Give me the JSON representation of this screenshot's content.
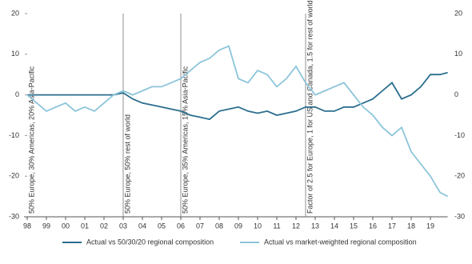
{
  "chart_data": {
    "type": "line",
    "x": [
      1998,
      1998.5,
      1999,
      1999.5,
      2000,
      2000.5,
      2001,
      2001.5,
      2002,
      2002.5,
      2003,
      2003.5,
      2004,
      2004.5,
      2005,
      2005.5,
      2006,
      2006.5,
      2007,
      2007.5,
      2008,
      2008.5,
      2009,
      2009.5,
      2010,
      2010.5,
      2011,
      2011.5,
      2012,
      2012.5,
      2013,
      2013.5,
      2014,
      2014.5,
      2015,
      2015.5,
      2016,
      2016.5,
      2017,
      2017.5,
      2018,
      2018.5,
      2019,
      2019.5,
      2019.9
    ],
    "series": [
      {
        "name": "Actual vs 50/30/20 regional composition",
        "color": "#2b6e8e",
        "values": [
          0,
          0,
          0,
          0,
          0,
          0,
          0,
          0,
          0,
          0,
          0.5,
          -1,
          -2,
          -2.5,
          -3,
          -3.5,
          -4,
          -5,
          -5.5,
          -6,
          -4,
          -3.5,
          -3,
          -4,
          -4.5,
          -4,
          -5,
          -4.5,
          -4,
          -3,
          -3,
          -4,
          -4,
          -3,
          -3,
          -2,
          -1,
          1,
          3,
          -1,
          0,
          2,
          5,
          5,
          5.5
        ]
      },
      {
        "name": "Actual vs market-weighted regional composition",
        "color": "#8cc5da",
        "values": [
          0,
          -2,
          -4,
          -3,
          -2,
          -4,
          -3,
          -4,
          -2,
          0,
          1,
          0,
          1,
          2,
          2,
          3,
          4,
          6,
          8,
          9,
          11,
          12,
          4,
          3,
          6,
          5,
          2,
          4,
          7,
          3,
          0,
          1,
          2,
          3,
          0,
          -3,
          -5,
          -8,
          -10,
          -8,
          -14,
          -17,
          -20,
          -24,
          -25
        ]
      }
    ],
    "xlim": [
      1998,
      2019.9
    ],
    "xticks": [
      {
        "value": 1998,
        "label": "98"
      },
      {
        "value": 1999,
        "label": "99"
      },
      {
        "value": 2000,
        "label": "00"
      },
      {
        "value": 2001,
        "label": "01"
      },
      {
        "value": 2002,
        "label": "02"
      },
      {
        "value": 2003,
        "label": "03"
      },
      {
        "value": 2004,
        "label": "04"
      },
      {
        "value": 2005,
        "label": "05"
      },
      {
        "value": 2006,
        "label": "06"
      },
      {
        "value": 2007,
        "label": "07"
      },
      {
        "value": 2008,
        "label": "08"
      },
      {
        "value": 2009,
        "label": "09"
      },
      {
        "value": 2010,
        "label": "10"
      },
      {
        "value": 2011,
        "label": "11"
      },
      {
        "value": 2012,
        "label": "12"
      },
      {
        "value": 2013,
        "label": "13"
      },
      {
        "value": 2014,
        "label": "14"
      },
      {
        "value": 2015,
        "label": "15"
      },
      {
        "value": 2016,
        "label": "16"
      },
      {
        "value": 2017,
        "label": "17"
      },
      {
        "value": 2018,
        "label": "18"
      },
      {
        "value": 2019,
        "label": "19"
      }
    ],
    "ylim": [
      -30,
      20
    ],
    "yticks": [
      -30,
      -20,
      -10,
      0,
      10,
      20
    ],
    "annotations": [
      {
        "text": "50% Europe, 30% Americas, 20% Asia-Pacific",
        "x": 1998
      },
      {
        "text": "50% Europe, 50% rest of world",
        "x": 2003
      },
      {
        "text": "50% Europe, 35% Americas, 15% Asia-Pacific",
        "x": 2006
      },
      {
        "text": "Factor of 2.5 for Europe, 1 for US and Canada, 1.5 for rest of world",
        "x": 2012.5
      }
    ]
  }
}
